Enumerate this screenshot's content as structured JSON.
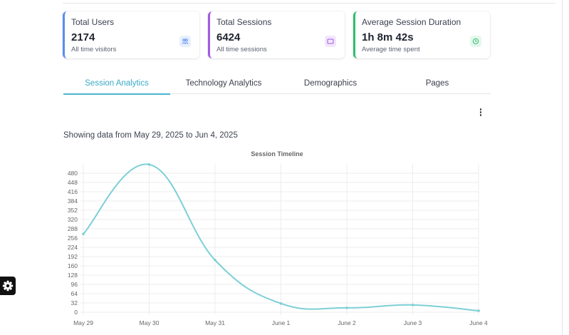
{
  "stats": [
    {
      "title": "Total Users",
      "value": "2174",
      "subtitle": "All time visitors",
      "icon": "users-icon",
      "color": "#5b8def"
    },
    {
      "title": "Total Sessions",
      "value": "6424",
      "subtitle": "All time sessions",
      "icon": "sessions-icon",
      "color": "#a15be3"
    },
    {
      "title": "Average Session Duration",
      "value": "1h 8m 42s",
      "subtitle": "Average time spent",
      "icon": "clock-icon",
      "color": "#2dbf6c"
    }
  ],
  "tabs": [
    {
      "label": "Session Analytics",
      "active": true
    },
    {
      "label": "Technology Analytics",
      "active": false
    },
    {
      "label": "Demographics",
      "active": false
    },
    {
      "label": "Pages",
      "active": false
    }
  ],
  "range_text": "Showing data from May 29, 2025 to Jun 4, 2025",
  "accent_color": "#4bb4d0",
  "chart_data": {
    "type": "line",
    "title": "Session Timeline",
    "categories": [
      "May 29",
      "May 30",
      "May 31",
      "June 1",
      "June 2",
      "June 3",
      "June 4"
    ],
    "series": [
      {
        "values": [
          270,
          510,
          180,
          30,
          15,
          25,
          5
        ]
      }
    ],
    "yticks": [
      0,
      32,
      64,
      96,
      128,
      160,
      192,
      224,
      256,
      288,
      320,
      352,
      384,
      416,
      448,
      480
    ],
    "ylim": [
      0,
      512
    ],
    "grid": true,
    "smooth": true,
    "line_color": "#7dcfd6"
  }
}
